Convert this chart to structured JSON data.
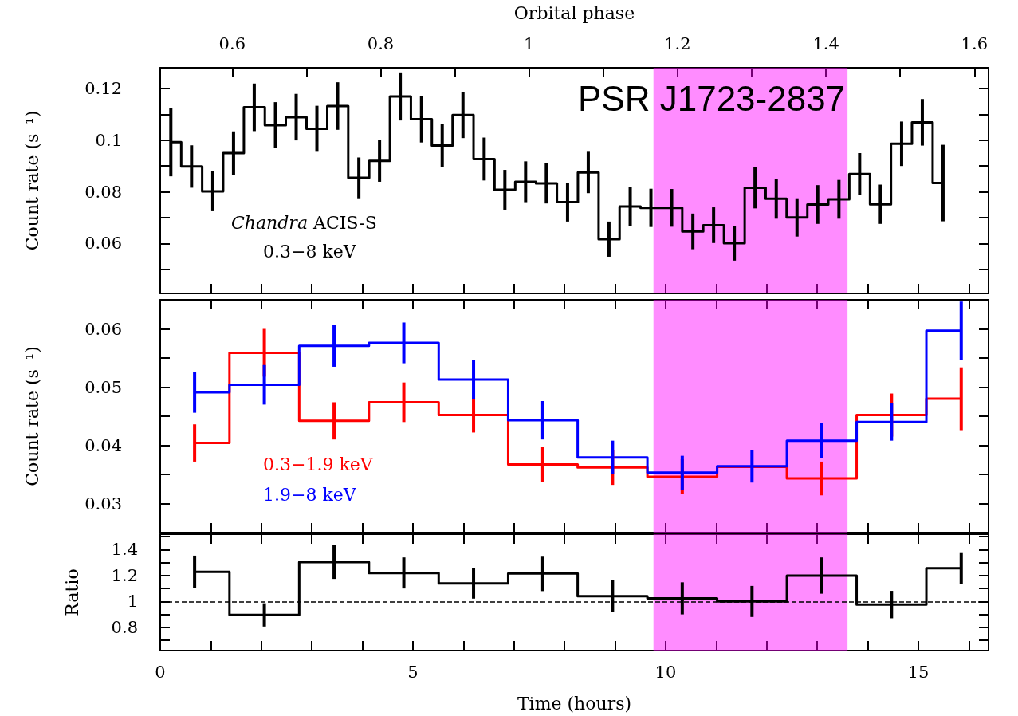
{
  "chart_data": [
    {
      "type": "step",
      "x2label": "Orbital phase",
      "ylabel": "Count rate (s⁻¹)",
      "x": [
        0.21,
        0.62,
        1.04,
        1.45,
        1.86,
        2.28,
        2.69,
        3.1,
        3.51,
        3.93,
        4.34,
        4.75,
        5.17,
        5.58,
        5.99,
        6.41,
        6.82,
        7.23,
        7.64,
        8.06,
        8.47,
        8.88,
        9.3,
        9.71,
        10.12,
        10.54,
        10.95,
        11.36,
        11.77,
        12.19,
        12.6,
        13.01,
        13.43,
        13.84,
        14.25,
        14.67,
        15.08,
        15.49
      ],
      "series": [
        {
          "color": "#000000",
          "values": [
            0.0992,
            0.0898,
            0.0802,
            0.095,
            0.1127,
            0.1058,
            0.1089,
            0.1044,
            0.1132,
            0.0854,
            0.092,
            0.1169,
            0.1081,
            0.0979,
            0.1097,
            0.0927,
            0.0808,
            0.0839,
            0.0833,
            0.076,
            0.0875,
            0.0617,
            0.0743,
            0.0738,
            0.0738,
            0.0647,
            0.0671,
            0.0601,
            0.0816,
            0.0773,
            0.0701,
            0.0751,
            0.0771,
            0.0869,
            0.0752,
            0.0986,
            0.1069,
            0.0834
          ],
          "errors": [
            0.0132,
            0.0082,
            0.0077,
            0.0084,
            0.0092,
            0.0089,
            0.009,
            0.0089,
            0.0092,
            0.0079,
            0.0081,
            0.0093,
            0.009,
            0.0084,
            0.0089,
            0.0083,
            0.0077,
            0.0079,
            0.0078,
            0.0075,
            0.008,
            0.0068,
            0.0075,
            0.0074,
            0.0073,
            0.0069,
            0.0069,
            0.0067,
            0.008,
            0.0077,
            0.0074,
            0.0075,
            0.0075,
            0.0081,
            0.0076,
            0.0086,
            0.009,
            0.0148
          ]
        }
      ],
      "xlim": [
        0,
        16.39
      ],
      "xticks": [
        0,
        {
          "value": 1,
          "label": null
        },
        {
          "value": 2,
          "label": null
        },
        {
          "value": 3,
          "label": null
        },
        {
          "value": 4,
          "label": null
        },
        5,
        {
          "value": 6,
          "label": null
        },
        {
          "value": 7,
          "label": null
        },
        {
          "value": 8,
          "label": null
        },
        {
          "value": 9,
          "label": null
        },
        10,
        {
          "value": 11,
          "label": null
        },
        {
          "value": 12,
          "label": null
        },
        {
          "value": 13,
          "label": null
        },
        {
          "value": 14,
          "label": null
        },
        15,
        {
          "value": 16,
          "label": null
        }
      ],
      "x2lim": [
        0.503,
        1.619
      ],
      "x2ticks": [
        0.6,
        {
          "value": 0.7,
          "label": null
        },
        0.8,
        {
          "value": 0.9,
          "label": null
        },
        1,
        {
          "value": 1.1,
          "label": null
        },
        1.2,
        {
          "value": 1.3,
          "label": null
        },
        1.4,
        {
          "value": 1.5,
          "label": null
        },
        1.6
      ],
      "ylim": [
        0.0407,
        0.128
      ],
      "yticks": [
        {
          "value": 0.05,
          "label": null
        },
        0.06,
        {
          "value": 0.07,
          "label": null
        },
        0.08,
        {
          "value": 0.09,
          "label": null
        },
        0.1,
        {
          "value": 0.11,
          "label": null
        },
        0.12
      ],
      "tick_labels": "y",
      "bands": [
        {
          "axis": "x",
          "from": 9.76,
          "to": 13.6,
          "color": "#ff00ff"
        }
      ],
      "annotations": [
        "PSR J1723-2837",
        "Chandra ACIS-S",
        "0.3−8 keV"
      ]
    },
    {
      "type": "step",
      "ylabel": "Count rate (s⁻¹)",
      "x": [
        0.68,
        2.06,
        3.44,
        4.82,
        6.2,
        7.57,
        8.95,
        10.33,
        11.71,
        13.09,
        14.47,
        15.85
      ],
      "series": [
        {
          "name": "0.3−1.9 keV",
          "color": "#ff0000",
          "values": [
            0.0404,
            0.0559,
            0.0442,
            0.0474,
            0.0452,
            0.0367,
            0.0362,
            0.0346,
            0.0363,
            0.0343,
            0.0452,
            0.048
          ],
          "errors": [
            0.0032,
            0.0041,
            0.0032,
            0.0034,
            0.003,
            0.003,
            0.003,
            0.003,
            null,
            0.0029,
            0.0037,
            0.0054
          ]
        },
        {
          "name": "1.9−8 keV",
          "color": "#0000ff",
          "values": [
            0.0491,
            0.0504,
            0.0571,
            0.0576,
            0.0513,
            0.0443,
            0.0379,
            0.0353,
            0.0364,
            0.0408,
            0.044,
            0.0597
          ],
          "errors": [
            0.0035,
            0.0034,
            0.0036,
            0.0035,
            0.0034,
            0.0033,
            0.0029,
            0.0029,
            0.0028,
            0.003,
            0.0032,
            0.005
          ]
        }
      ],
      "xlim": [
        0,
        16.39
      ],
      "xticks": [
        0,
        {
          "value": 1,
          "label": null
        },
        {
          "value": 2,
          "label": null
        },
        {
          "value": 3,
          "label": null
        },
        {
          "value": 4,
          "label": null
        },
        5,
        {
          "value": 6,
          "label": null
        },
        {
          "value": 7,
          "label": null
        },
        {
          "value": 8,
          "label": null
        },
        {
          "value": 9,
          "label": null
        },
        10,
        {
          "value": 11,
          "label": null
        },
        {
          "value": 12,
          "label": null
        },
        {
          "value": 13,
          "label": null
        },
        {
          "value": 14,
          "label": null
        },
        15,
        {
          "value": 16,
          "label": null
        }
      ],
      "ylim": [
        0.025,
        0.065
      ],
      "yticks": [
        0.03,
        {
          "value": 0.035,
          "label": null
        },
        0.04,
        {
          "value": 0.045,
          "label": null
        },
        0.05,
        {
          "value": 0.055,
          "label": null
        },
        0.06
      ],
      "tick_labels": "y",
      "bands": [
        {
          "axis": "x",
          "from": 9.76,
          "to": 13.6,
          "color": "#ff00ff"
        }
      ]
    },
    {
      "type": "step",
      "ylabel": "Ratio",
      "xlabel": "Time (hours)",
      "x": [
        0.68,
        2.06,
        3.44,
        4.82,
        6.2,
        7.57,
        8.95,
        10.33,
        11.71,
        13.09,
        14.47,
        15.85
      ],
      "series": [
        {
          "color": "#000000",
          "values": [
            1.228,
            0.896,
            1.304,
            1.22,
            1.14,
            1.216,
            1.04,
            1.024,
            1.0,
            1.2,
            0.976,
            1.256
          ],
          "errors": [
            0.126,
            0.09,
            0.13,
            0.12,
            0.118,
            0.136,
            0.124,
            0.124,
            0.12,
            0.14,
            0.106,
            0.124
          ]
        }
      ],
      "xlim": [
        0,
        16.39
      ],
      "xticks": [
        0,
        {
          "value": 1,
          "label": null
        },
        {
          "value": 2,
          "label": null
        },
        {
          "value": 3,
          "label": null
        },
        {
          "value": 4,
          "label": null
        },
        5,
        {
          "value": 6,
          "label": null
        },
        {
          "value": 7,
          "label": null
        },
        {
          "value": 8,
          "label": null
        },
        {
          "value": 9,
          "label": null
        },
        10,
        {
          "value": 11,
          "label": null
        },
        {
          "value": 12,
          "label": null
        },
        {
          "value": 13,
          "label": null
        },
        {
          "value": 14,
          "label": null
        },
        15,
        {
          "value": 16,
          "label": null
        }
      ],
      "ylim": [
        0.62,
        1.52
      ],
      "yticks": [
        {
          "value": 0.7,
          "label": null
        },
        0.8,
        {
          "value": 0.9,
          "label": null
        },
        1,
        {
          "value": 1.1,
          "label": null
        },
        1.2,
        {
          "value": 1.3,
          "label": null
        },
        1.4,
        {
          "value": 1.5,
          "label": null
        }
      ],
      "ref_lines": [
        {
          "axis": "y",
          "value": 1,
          "color": "#000000",
          "line_style": "dashed"
        }
      ],
      "bands": [
        {
          "axis": "x",
          "from": 9.76,
          "to": 13.6,
          "color": "#ff00ff"
        }
      ]
    }
  ]
}
